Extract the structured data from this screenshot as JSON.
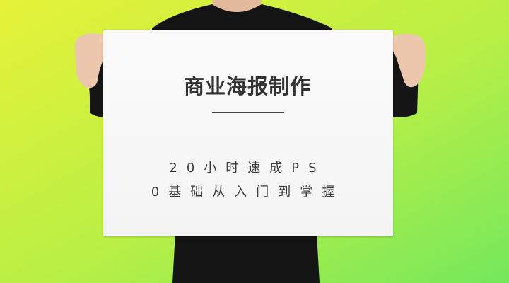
{
  "poster": {
    "title": "商业海报制作",
    "line1": "20小时速成PS",
    "line2": "0基础从入门到掌握"
  },
  "colors": {
    "background_top_left": "#e6f238",
    "background_bottom_right": "#74e85c",
    "poster_paper": "#f7f7f7",
    "shirt": "#141414",
    "skin": "#ecc7ad",
    "text": "#333333"
  },
  "icons": {
    "person": "person-holding-poster-illustration"
  }
}
